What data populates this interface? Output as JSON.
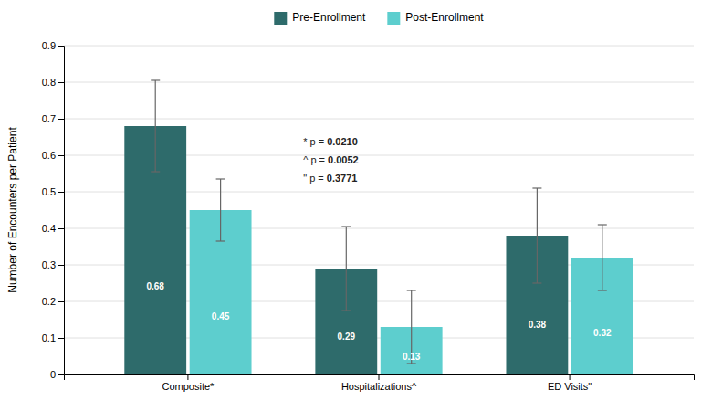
{
  "chart_data": {
    "type": "bar",
    "categories": [
      "Composite*",
      "Hospitalizations^",
      "ED Visits\""
    ],
    "series": [
      {
        "name": "Pre-Enrollment",
        "color": "#2e6b6b",
        "values": [
          0.68,
          0.29,
          0.38
        ],
        "errors": [
          0.125,
          0.115,
          0.13
        ]
      },
      {
        "name": "Post-Enrollment",
        "color": "#5dcece",
        "values": [
          0.45,
          0.13,
          0.32
        ],
        "errors": [
          0.085,
          0.1,
          0.09
        ]
      }
    ],
    "y_label": "Number of Encounters per Patient",
    "ylim": [
      0,
      0.9
    ],
    "yticks": [
      0,
      0.1,
      0.2,
      0.3,
      0.4,
      0.5,
      0.6,
      0.7,
      0.8,
      0.9
    ],
    "grid": true,
    "legend": "top",
    "data_labels": true,
    "annotations": [
      "* p = 0.0210",
      "^ p = 0.0052",
      "\" p = 0.3771"
    ]
  }
}
